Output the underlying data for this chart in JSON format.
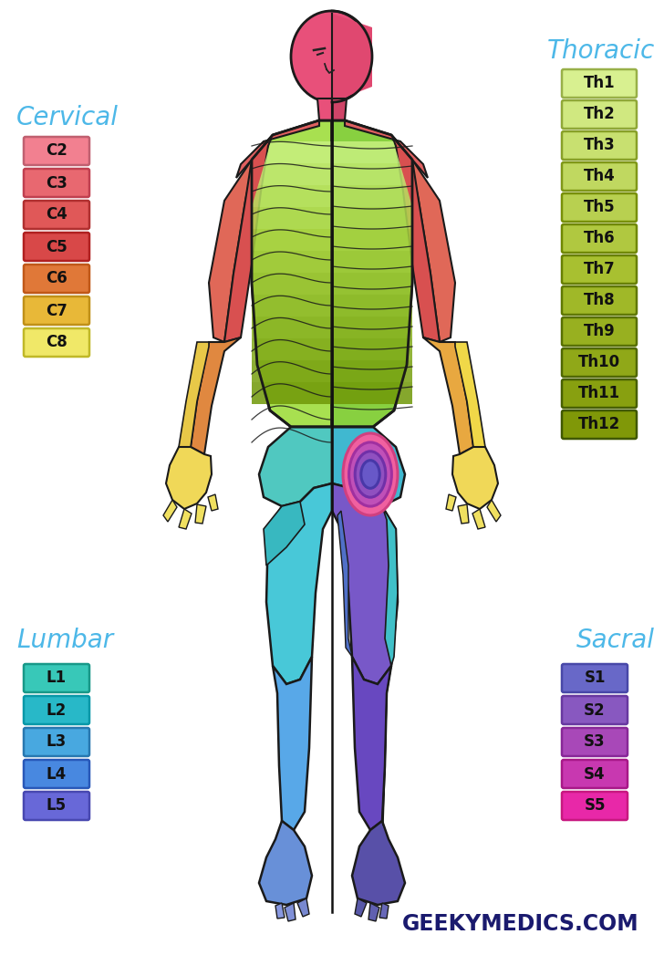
{
  "background_color": "#ffffff",
  "title_color": "#4db8e8",
  "cervical_title": "Cervical",
  "cervical_labels": [
    "C2",
    "C3",
    "C4",
    "C5",
    "C6",
    "C7",
    "C8"
  ],
  "cervical_colors": [
    "#f28090",
    "#e86870",
    "#e05858",
    "#d84848",
    "#e07838",
    "#e8b838",
    "#f0e868"
  ],
  "cervical_border_colors": [
    "#c06070",
    "#c04050",
    "#b03030",
    "#b02020",
    "#c05818",
    "#c09018",
    "#c0b828"
  ],
  "thoracic_title": "Thoracic",
  "thoracic_labels": [
    "Th1",
    "Th2",
    "Th3",
    "Th4",
    "Th5",
    "Th6",
    "Th7",
    "Th8",
    "Th9",
    "Th10",
    "Th11",
    "Th12"
  ],
  "thoracic_colors": [
    "#d8f090",
    "#d0e880",
    "#c8e070",
    "#c0d860",
    "#b8d050",
    "#b0c840",
    "#a8c030",
    "#a0b828",
    "#98b020",
    "#90a818",
    "#88a010",
    "#809808"
  ],
  "thoracic_border_colors": [
    "#98b048",
    "#90a838",
    "#88a028",
    "#809818",
    "#789008",
    "#708800",
    "#688000",
    "#607800",
    "#587000",
    "#506800",
    "#486000",
    "#405800"
  ],
  "lumbar_title": "Lumbar",
  "lumbar_labels": [
    "L1",
    "L2",
    "L3",
    "L4",
    "L5"
  ],
  "lumbar_colors": [
    "#38c8b8",
    "#28b8c8",
    "#48a8e0",
    "#4888e0",
    "#6868d8"
  ],
  "lumbar_border_colors": [
    "#189888",
    "#0898a8",
    "#2878b0",
    "#2858b8",
    "#4848b0"
  ],
  "sacral_title": "Sacral",
  "sacral_labels": [
    "S1",
    "S2",
    "S3",
    "S4",
    "S5"
  ],
  "sacral_colors": [
    "#6868c8",
    "#8858c0",
    "#a848b8",
    "#c838b0",
    "#e828a8"
  ],
  "sacral_border_colors": [
    "#4848a8",
    "#6838a0",
    "#882898",
    "#a81888",
    "#c81880"
  ],
  "geekymedics_text": "GEEKYMEDICS.COM",
  "geekymedics_color": "#1a1a6e"
}
